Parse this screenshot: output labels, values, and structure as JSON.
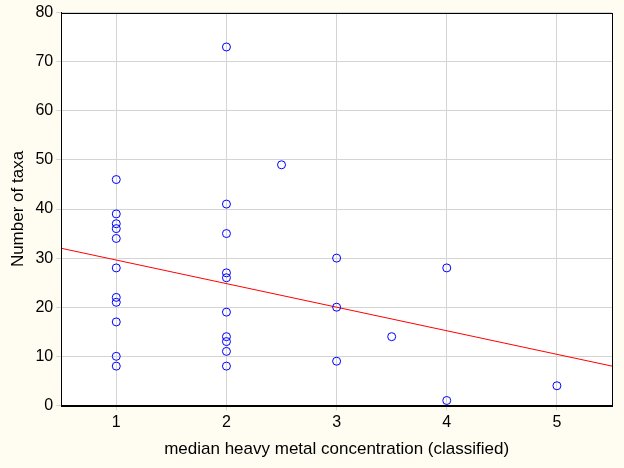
{
  "chart_data": {
    "type": "scatter",
    "x_label": "median heavy metal concentration (classified)",
    "y_label": "Number of taxa",
    "xlim": [
      0.5,
      5.5
    ],
    "xticks": [
      1,
      2,
      3,
      4,
      5
    ],
    "ylim": [
      0,
      80
    ],
    "yticks": [
      0,
      10,
      20,
      30,
      40,
      50,
      60,
      70,
      80
    ],
    "grid": true,
    "series": [
      {
        "type": "scatter",
        "color": "#0000ff",
        "marker": "circle",
        "x": [
          1,
          1,
          1,
          1,
          1,
          1,
          1,
          1,
          1,
          1,
          1,
          2,
          2,
          2,
          2,
          2,
          2,
          2,
          2,
          2,
          2,
          2.5,
          3,
          3,
          3,
          3.5,
          4,
          4,
          5
        ],
        "values": [
          46,
          39,
          37,
          36,
          34,
          28,
          22,
          21,
          17,
          10,
          8,
          73,
          41,
          35,
          27,
          26,
          19,
          14,
          13,
          11,
          8,
          49,
          30,
          20,
          9,
          14,
          28,
          1,
          4
        ]
      },
      {
        "type": "line",
        "color": "#ff0000",
        "line_style": "solid",
        "x": [
          0.5,
          5.5
        ],
        "values": [
          32,
          8
        ]
      }
    ]
  }
}
